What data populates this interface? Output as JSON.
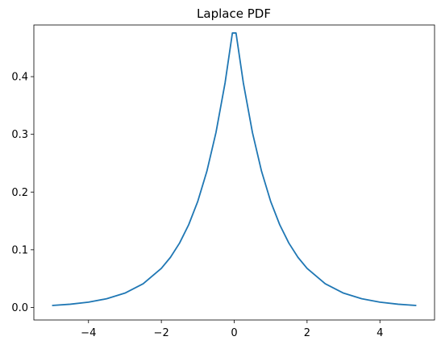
{
  "chart_data": {
    "type": "line",
    "title": "Laplace PDF",
    "xlabel": "",
    "ylabel": "",
    "xlim": [
      -5.5,
      5.5
    ],
    "ylim": [
      -0.0217,
      0.4895
    ],
    "x_ticks": [
      -4,
      -2,
      0,
      2,
      4
    ],
    "x_tick_labels": [
      "−4",
      "−2",
      "0",
      "2",
      "4"
    ],
    "y_ticks": [
      0.0,
      0.1,
      0.2,
      0.3,
      0.4
    ],
    "y_tick_labels": [
      "0.0",
      "0.1",
      "0.2",
      "0.3",
      "0.4"
    ],
    "grid": false,
    "legend": "none",
    "series": [
      {
        "color": "#1f77b4",
        "x": [
          -5.0,
          -4.5,
          -4.0,
          -3.5,
          -3.0,
          -2.5,
          -2.0,
          -1.75,
          -1.5,
          -1.25,
          -1.0,
          -0.75,
          -0.5,
          -0.25,
          -0.05,
          0.05,
          0.25,
          0.5,
          0.75,
          1.0,
          1.25,
          1.5,
          1.75,
          2.0,
          2.5,
          3.0,
          3.5,
          4.0,
          4.5,
          5.0
        ],
        "y": [
          0.0034,
          0.0056,
          0.0092,
          0.0151,
          0.0249,
          0.041,
          0.0677,
          0.0869,
          0.1116,
          0.1433,
          0.1839,
          0.2361,
          0.3033,
          0.3894,
          0.4756,
          0.4756,
          0.3894,
          0.3033,
          0.2361,
          0.1839,
          0.1433,
          0.1116,
          0.0869,
          0.0677,
          0.041,
          0.0249,
          0.0151,
          0.0092,
          0.0056,
          0.0034
        ]
      }
    ]
  }
}
